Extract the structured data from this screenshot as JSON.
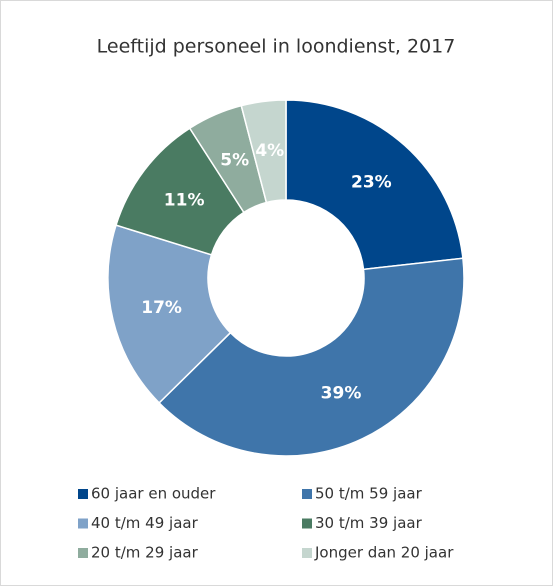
{
  "chart_data": {
    "type": "donut",
    "title": "Leeftijd personeel in loondienst, 2017",
    "categories": [
      "60 jaar en ouder",
      "50 t/m 59 jaar",
      "40 t/m 49 jaar",
      "30 t/m 39 jaar",
      "20 t/m 29 jaar",
      "Jonger dan 20 jaar"
    ],
    "values": [
      23,
      39,
      17,
      11,
      5,
      4
    ],
    "value_labels": [
      "23%",
      "39%",
      "17%",
      "11%",
      "5%",
      "4%"
    ],
    "colors": [
      "#00468b",
      "#3f75aa",
      "#7fa2c8",
      "#4a7b62",
      "#8fac9e",
      "#c5d6cf"
    ]
  }
}
